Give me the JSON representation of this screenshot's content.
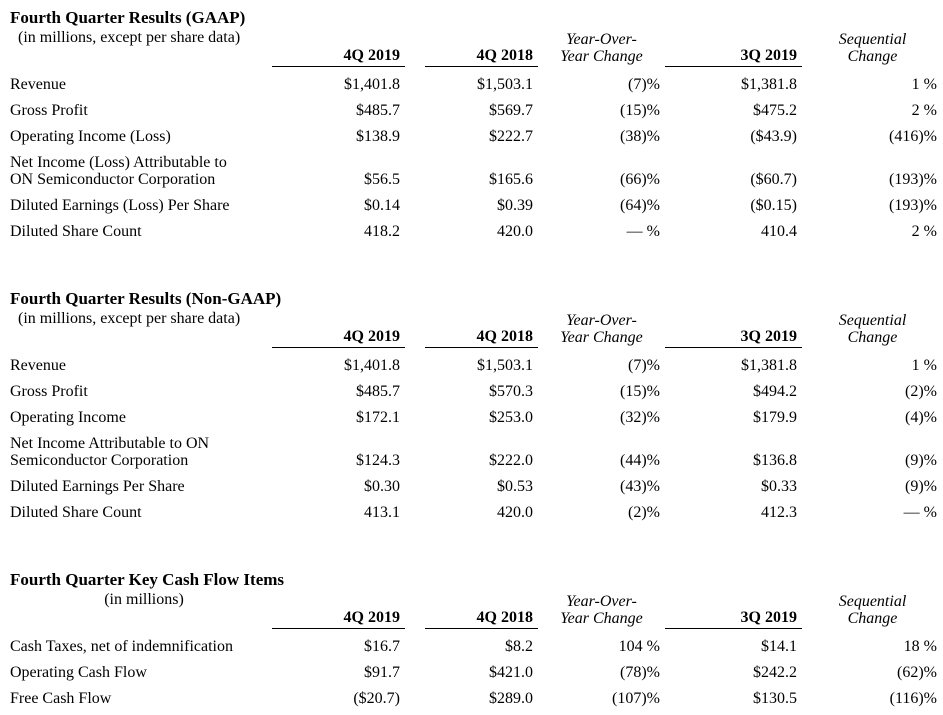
{
  "tables": [
    {
      "title": "Fourth Quarter Results (GAAP)",
      "subtitle": "(in millions, except per share data)",
      "columns": [
        "4Q 2019",
        "4Q 2018",
        "Year-Over-\nYear Change",
        "3Q 2019",
        "Sequential\nChange"
      ],
      "rows": [
        {
          "label": "Revenue",
          "values": [
            "$1,401.8",
            "$1,503.1",
            "(7)%",
            "$1,381.8",
            "1 %"
          ]
        },
        {
          "label": "Gross Profit",
          "values": [
            "$485.7",
            "$569.7",
            "(15)%",
            "$475.2",
            "2 %"
          ]
        },
        {
          "label": "Operating Income (Loss)",
          "values": [
            "$138.9",
            "$222.7",
            "(38)%",
            "($43.9)",
            "(416)%"
          ]
        },
        {
          "label": "Net Income (Loss) Attributable to\nON Semiconductor Corporation",
          "values": [
            "$56.5",
            "$165.6",
            "(66)%",
            "($60.7)",
            "(193)%"
          ]
        },
        {
          "label": "Diluted Earnings (Loss) Per Share",
          "values": [
            "$0.14",
            "$0.39",
            "(64)%",
            "($0.15)",
            "(193)%"
          ]
        },
        {
          "label": "Diluted Share Count",
          "values": [
            "418.2",
            "420.0",
            "— %",
            "410.4",
            "2 %"
          ]
        }
      ]
    },
    {
      "title": "Fourth Quarter Results (Non-GAAP)",
      "subtitle": "(in millions, except per share data)",
      "columns": [
        "4Q 2019",
        "4Q 2018",
        "Year-Over-\nYear Change",
        "3Q 2019",
        "Sequential\nChange"
      ],
      "rows": [
        {
          "label": "Revenue",
          "values": [
            "$1,401.8",
            "$1,503.1",
            "(7)%",
            "$1,381.8",
            "1 %"
          ]
        },
        {
          "label": "Gross Profit",
          "values": [
            "$485.7",
            "$570.3",
            "(15)%",
            "$494.2",
            "(2)%"
          ]
        },
        {
          "label": "Operating Income",
          "values": [
            "$172.1",
            "$253.0",
            "(32)%",
            "$179.9",
            "(4)%"
          ]
        },
        {
          "label": "Net Income Attributable to ON\nSemiconductor Corporation",
          "values": [
            "$124.3",
            "$222.0",
            "(44)%",
            "$136.8",
            "(9)%"
          ]
        },
        {
          "label": "Diluted Earnings Per Share",
          "values": [
            "$0.30",
            "$0.53",
            "(43)%",
            "$0.33",
            "(9)%"
          ]
        },
        {
          "label": "Diluted Share Count",
          "values": [
            "413.1",
            "420.0",
            "(2)%",
            "412.3",
            "— %"
          ]
        }
      ]
    },
    {
      "title": "Fourth Quarter Key Cash Flow Items",
      "subtitle": "(in millions)",
      "columns": [
        "4Q 2019",
        "4Q 2018",
        "Year-Over-\nYear Change",
        "3Q 2019",
        "Sequential\nChange"
      ],
      "rows": [
        {
          "label": "Cash Taxes, net of indemnification",
          "values": [
            "$16.7",
            "$8.2",
            "104 %",
            "$14.1",
            "18 %"
          ]
        },
        {
          "label": "Operating Cash Flow",
          "values": [
            "$91.7",
            "$421.0",
            "(78)%",
            "$242.2",
            "(62)%"
          ]
        },
        {
          "label": "Free Cash Flow",
          "values": [
            "($20.7)",
            "$289.0",
            "(107)%",
            "$130.5",
            "(116)%"
          ]
        }
      ]
    }
  ]
}
